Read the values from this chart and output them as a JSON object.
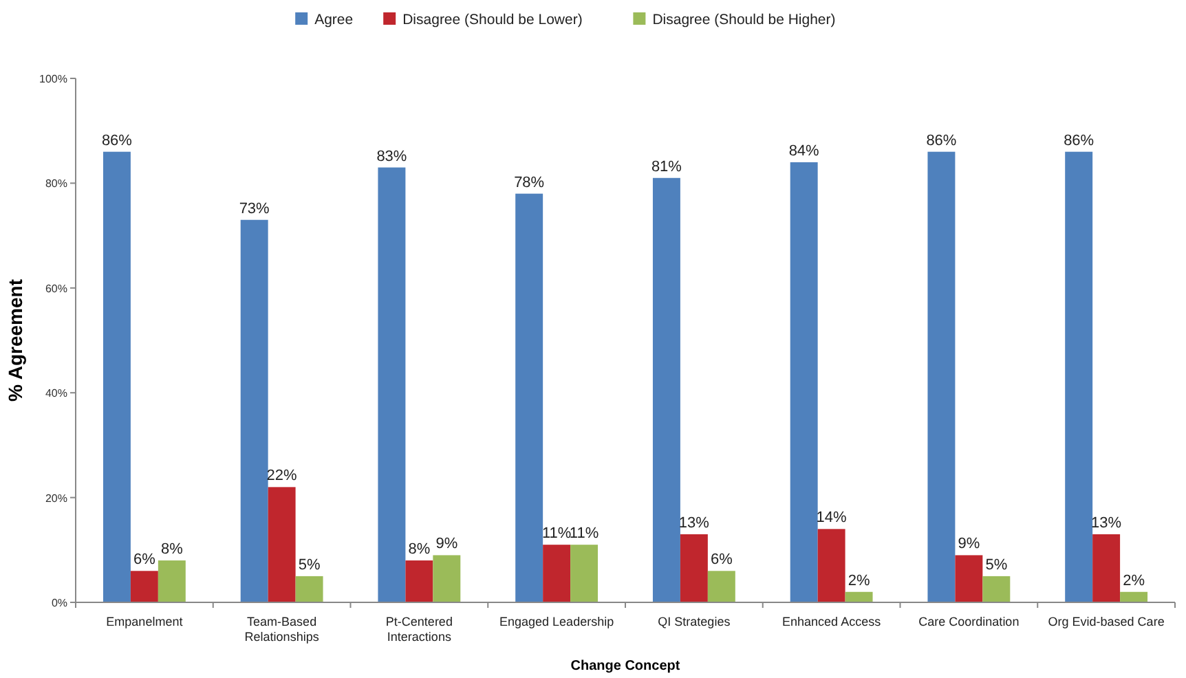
{
  "chart_data": {
    "type": "bar",
    "xlabel": "Change Concept",
    "ylabel": "% Agreement",
    "categories": [
      "Empanelment",
      "Team-Based Relationships",
      "Pt-Centered Interactions",
      "Engaged Leadership",
      "QI Strategies",
      "Enhanced Access",
      "Care Coordination",
      "Org Evid-based Care"
    ],
    "series": [
      {
        "name": "Agree",
        "color": "#4f81bd",
        "values": [
          86,
          73,
          83,
          78,
          81,
          84,
          86,
          86
        ],
        "value_labels": [
          "86%",
          "73%",
          "83%",
          "78%",
          "81%",
          "84%",
          "86%",
          "86%"
        ]
      },
      {
        "name": "Disagree (Should be Lower)",
        "color": "#c0262d",
        "values": [
          6,
          22,
          8,
          11,
          13,
          14,
          9,
          13
        ],
        "value_labels": [
          "6%",
          "22%",
          "8%",
          "11%",
          "13%",
          "14%",
          "9%",
          "13%"
        ]
      },
      {
        "name": "Disagree (Should be Higher)",
        "color": "#9bbb59",
        "values": [
          8,
          5,
          9,
          11,
          6,
          2,
          5,
          2
        ],
        "value_labels": [
          "8%",
          "5%",
          "9%",
          "11%",
          "6%",
          "2%",
          "5%",
          "2%"
        ]
      }
    ],
    "ylim": [
      0,
      100
    ],
    "yticks": [
      {
        "value": 0,
        "label": "0%"
      },
      {
        "value": 20,
        "label": "20%"
      },
      {
        "value": 40,
        "label": "40%"
      },
      {
        "value": 60,
        "label": "60%"
      },
      {
        "value": 80,
        "label": "80%"
      },
      {
        "value": 100,
        "label": "100%"
      }
    ],
    "grid": false,
    "legend": "top"
  }
}
